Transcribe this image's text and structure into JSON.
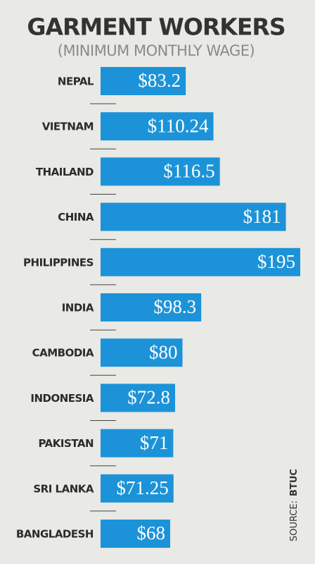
{
  "chart_data": {
    "type": "bar",
    "orientation": "horizontal",
    "title": "GARMENT WORKERS",
    "subtitle": "(MINIMUM MONTHLY WAGE)",
    "categories": [
      "NEPAL",
      "VIETNAM",
      "THAILAND",
      "CHINA",
      "PHILIPPINES",
      "INDIA",
      "CAMBODIA",
      "INDONESIA",
      "PAKISTAN",
      "SRI LANKA",
      "BANGLADESH"
    ],
    "values": [
      83.2,
      110.24,
      116.5,
      181,
      195,
      98.3,
      80,
      72.8,
      71,
      71.25,
      68
    ],
    "value_labels": [
      "$83.2",
      "$110.24",
      "$116.5",
      "$181",
      "$195",
      "$98.3",
      "$80",
      "$72.8",
      "$71",
      "$71.25",
      "$68"
    ],
    "color": "#1c93d8",
    "source": "SOURCE:",
    "source_name": "BTUC"
  }
}
